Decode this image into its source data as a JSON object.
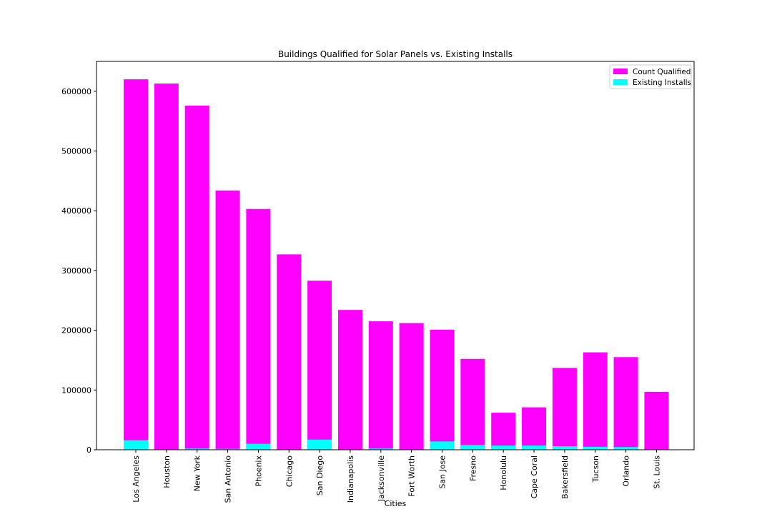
{
  "chart_data": {
    "type": "bar",
    "title": "Buildings Qualified for Solar Panels vs. Existing Installs",
    "xlabel": "Cities",
    "ylabel": "",
    "ylim": [
      0,
      650000
    ],
    "yticks": [
      0,
      100000,
      200000,
      300000,
      400000,
      500000,
      600000
    ],
    "ytick_labels": [
      "0",
      "100000",
      "200000",
      "300000",
      "400000",
      "500000",
      "600000"
    ],
    "grid": false,
    "legend_position": "top-right",
    "categories": [
      "Los Angeles",
      "Houston",
      "New York",
      "San Antonio",
      "Phoenix",
      "Chicago",
      "San Diego",
      "Indianapolis",
      "Jacksonville",
      "Fort Worth",
      "San Jose",
      "Fresno",
      "Honolulu",
      "Cape Coral",
      "Bakersfield",
      "Tucson",
      "Orlando",
      "St. Louis"
    ],
    "series": [
      {
        "name": "Count Qualified",
        "color": "#ff00ff",
        "values": [
          620000,
          613000,
          576000,
          434000,
          403000,
          327000,
          283000,
          234000,
          215000,
          212000,
          201000,
          152000,
          62000,
          71000,
          137000,
          163000,
          155000,
          97000
        ]
      },
      {
        "name": "Existing Installs",
        "color": "#00ffff",
        "values": [
          16000,
          500,
          2000,
          1500,
          10000,
          500,
          17000,
          500,
          2000,
          500,
          14000,
          8000,
          7000,
          7000,
          6000,
          5000,
          4500,
          500
        ]
      }
    ]
  }
}
